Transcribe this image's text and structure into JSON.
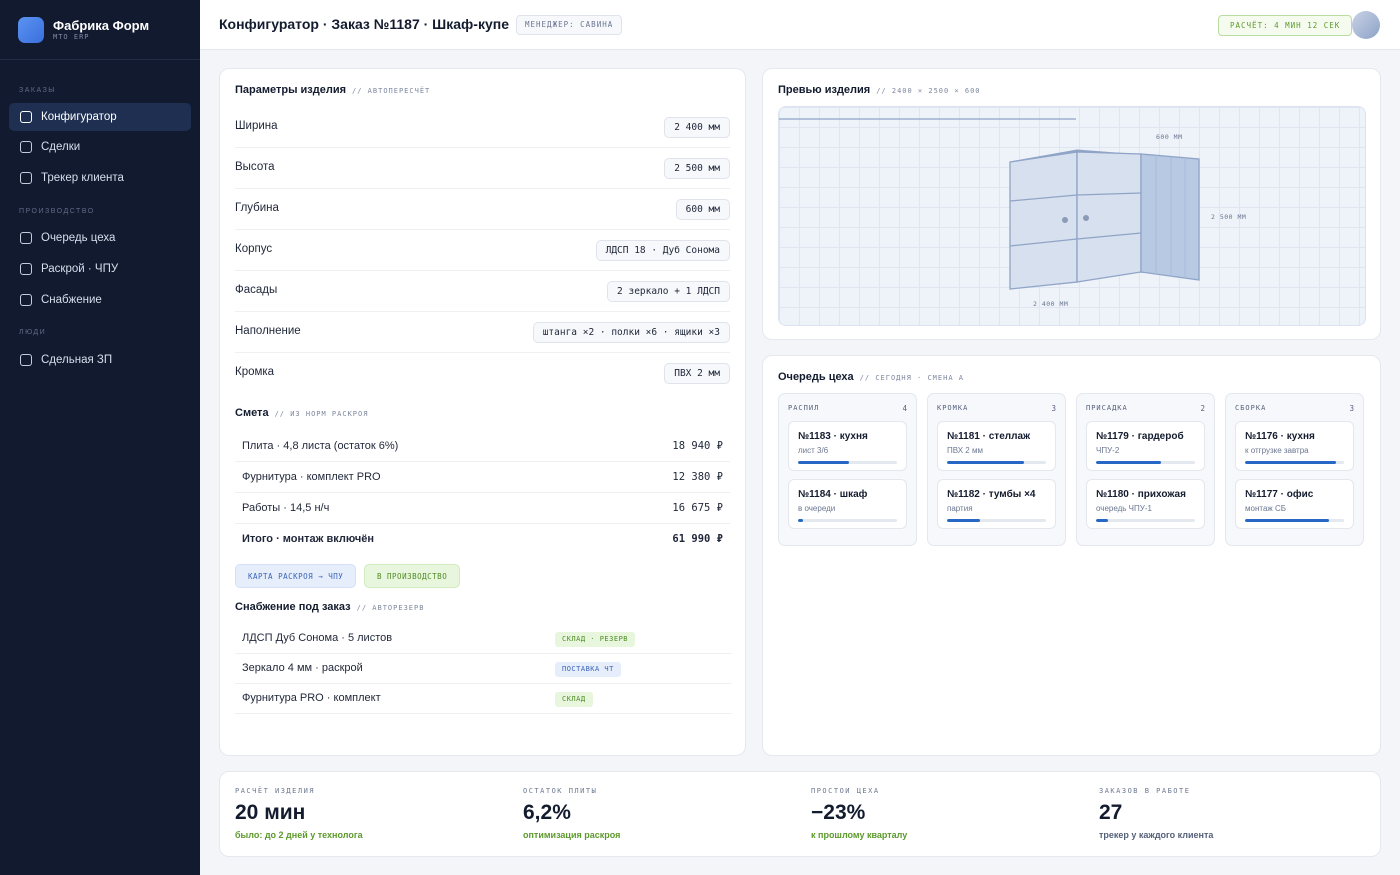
{
  "sidebar": {
    "brand_name": "Фабрика Форм",
    "brand_sub": "MTO ERP",
    "sections": [
      {
        "title": "ЗАКАЗЫ"
      },
      {
        "title": "ПРОИЗВОДСТВО"
      },
      {
        "title": "ЛЮДИ"
      }
    ],
    "items": [
      {
        "label": "Конфигуратор",
        "active": true
      },
      {
        "label": "Сделки"
      },
      {
        "label": "Трекер клиента"
      },
      {
        "label": "Очередь цеха"
      },
      {
        "label": "Раскрой · ЧПУ"
      },
      {
        "label": "Снабжение"
      },
      {
        "label": "Сдельная ЗП"
      }
    ]
  },
  "header": {
    "title": "Конфигуратор · Заказ №1187 · Шкаф-купе",
    "manager": "МЕНЕДЖЕР: САВИНА",
    "timer": "РАСЧЁТ: 4 МИН 12 СЕК"
  },
  "params": {
    "title": "Параметры изделия",
    "subtitle": "// АВТОПЕРЕСЧЁТ",
    "rows": [
      {
        "label": "Ширина",
        "value": "2 400 мм"
      },
      {
        "label": "Высота",
        "value": "2 500 мм"
      },
      {
        "label": "Глубина",
        "value": "600 мм"
      },
      {
        "label": "Корпус",
        "value": "ЛДСП 18 · Дуб Сонома"
      },
      {
        "label": "Фасады",
        "value": "2 зеркало + 1 ЛДСП"
      },
      {
        "label": "Наполнение",
        "value": "штанга ×2 · полки ×6 · ящики ×3"
      },
      {
        "label": "Кромка",
        "value": "ПВХ 2 мм"
      }
    ]
  },
  "estimate": {
    "title": "Смета",
    "subtitle": "// ИЗ НОРМ РАСКРОЯ",
    "rows": [
      {
        "label": "Плита · 4,8 листа (остаток 6%)",
        "amount": "18 940 ₽"
      },
      {
        "label": "Фурнитура · комплект PRO",
        "amount": "12 380 ₽"
      },
      {
        "label": "Работы · 14,5 н/ч",
        "amount": "16 675 ₽"
      },
      {
        "label": "Итого · монтаж включён",
        "amount": "61 990 ₽"
      }
    ],
    "btn_cut": "КАРТА РАСКРОЯ → ЧПУ",
    "btn_prod": "В ПРОИЗВОДСТВО"
  },
  "supply": {
    "title": "Снабжение под заказ",
    "subtitle": "// АВТОРЕЗЕРВ",
    "rows": [
      {
        "label": "ЛДСП Дуб Сонома · 5 листов",
        "tag": "СКЛАД · РЕЗЕРВ",
        "color": "#4f8c25"
      },
      {
        "label": "Зеркало 4 мм · раскрой",
        "tag": "ПОСТАВКА ЧТ",
        "color": "#3a64b8"
      },
      {
        "label": "Фурнитура PRO · комплект",
        "tag": "СКЛАД",
        "color": "#4f8c25"
      }
    ]
  },
  "preview": {
    "title": "Превью изделия",
    "subtitle": "// 2400 × 2500 × 600",
    "dim_depth": "600 ММ",
    "dim_height": "2 500 ММ",
    "dim_width": "2 400 ММ"
  },
  "queue": {
    "title": "Очередь цеха",
    "subtitle": "// СЕГОДНЯ · СМЕНА А",
    "columns": [
      {
        "name": "РАСПИЛ",
        "count": "4",
        "items": [
          {
            "title": "№1183 · кухня",
            "sub": "лист 3/6",
            "progress": 0.52
          },
          {
            "title": "№1184 · шкаф",
            "sub": "в очереди",
            "progress": 0.05
          }
        ]
      },
      {
        "name": "КРОМКА",
        "count": "3",
        "items": [
          {
            "title": "№1181 · стеллаж",
            "sub": "ПВХ 2 мм",
            "progress": 0.78
          },
          {
            "title": "№1182 · тумбы ×4",
            "sub": "партия",
            "progress": 0.33
          }
        ]
      },
      {
        "name": "ПРИСАДКА",
        "count": "2",
        "items": [
          {
            "title": "№1179 · гардероб",
            "sub": "ЧПУ-2",
            "progress": 0.66
          },
          {
            "title": "№1180 · прихожая",
            "sub": "очередь ЧПУ-1",
            "progress": 0.12
          }
        ]
      },
      {
        "name": "СБОРКА",
        "count": "3",
        "items": [
          {
            "title": "№1176 · кухня",
            "sub": "к отгрузке завтра",
            "progress": 0.92
          },
          {
            "title": "№1177 · офис",
            "sub": "монтаж СБ",
            "progress": 0.85
          }
        ]
      }
    ]
  },
  "kpis": [
    {
      "label": "РАСЧЁТ ИЗДЕЛИЯ",
      "value": "20 мин",
      "note": "было: до 2 дней у технолога",
      "tone": "green"
    },
    {
      "label": "ОСТАТОК ПЛИТЫ",
      "value": "6,2%",
      "note": "оптимизация раскроя",
      "tone": "green"
    },
    {
      "label": "ПРОСТОИ ЦЕХА",
      "value": "−23%",
      "note": "к прошлому кварталу",
      "tone": "green"
    },
    {
      "label": "ЗАКАЗОВ В РАБОТЕ",
      "value": "27",
      "note": "трекер у каждого клиента",
      "tone": "grey"
    }
  ]
}
